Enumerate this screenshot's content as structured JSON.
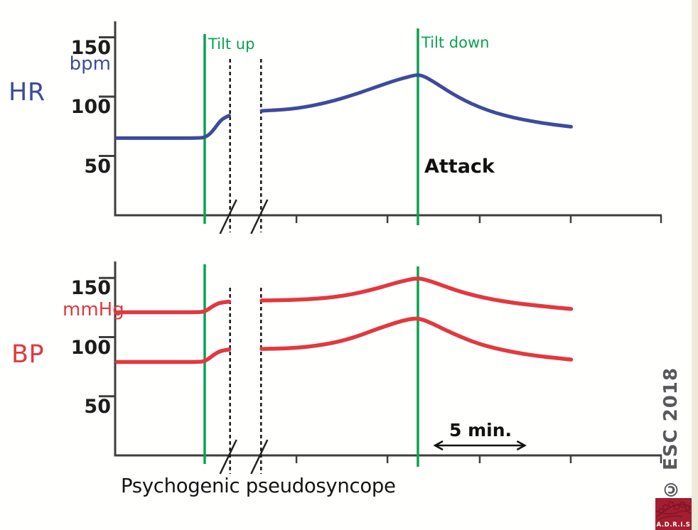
{
  "figure": {
    "caption": "Psychogenic pseudosyncope",
    "esc_credit": "© ESC 2018",
    "logo_text": "A.D.R.I.S"
  },
  "colors": {
    "hr_line": "#3e4a9c",
    "bp_line": "#e2383f",
    "event_line": "#0ba14f",
    "axis": "#3e3e3e",
    "dashed_line": "#161616",
    "text": "#141414",
    "esc_text": "#57585a",
    "logo_bg": "#a41e30",
    "logo_accent": "#7d1426",
    "side_strip": "#edead9"
  },
  "chart_data": [
    {
      "type": "line",
      "panel": "top",
      "panel_label": "HR",
      "ylabel": "bpm",
      "yticks": [
        150,
        100,
        50
      ],
      "ylim": [
        0,
        163
      ],
      "x_unit": "min",
      "grid": false,
      "xticks_min": [
        4.91,
        9.94,
        14.93,
        19.99,
        24.98,
        29.93
      ],
      "axis_break_min": [
        6.3,
        8.0
      ],
      "events": {
        "tilt_up_min": 4.91,
        "tilt_up_label": "Tilt up",
        "tilt_down_min": 16.6,
        "tilt_down_label": "Tilt down"
      },
      "annotation": "Attack",
      "series": [
        {
          "name": "heart-rate",
          "color": "#3e4a9c",
          "segments": [
            [
              [
                0.1,
                65
              ],
              [
                3.0,
                65
              ],
              [
                4.7,
                65
              ],
              [
                4.95,
                66
              ],
              [
                5.2,
                68.5
              ],
              [
                5.45,
                73
              ],
              [
                5.7,
                78.5
              ],
              [
                5.95,
                82
              ],
              [
                6.25,
                84
              ]
            ],
            [
              [
                8.03,
                88
              ],
              [
                8.8,
                88.6
              ],
              [
                9.6,
                89.6
              ],
              [
                10.4,
                91.2
              ],
              [
                11.2,
                93.6
              ],
              [
                12.0,
                96.6
              ],
              [
                12.8,
                100.2
              ],
              [
                13.6,
                104.3
              ],
              [
                14.4,
                108.6
              ],
              [
                15.2,
                112.8
              ],
              [
                15.9,
                116
              ],
              [
                16.35,
                117.8
              ],
              [
                16.62,
                118.4
              ],
              [
                16.95,
                117
              ],
              [
                17.35,
                113.6
              ],
              [
                17.85,
                108.7
              ],
              [
                18.45,
                102.8
              ],
              [
                19.15,
                96.8
              ],
              [
                19.95,
                91.2
              ],
              [
                20.85,
                86.2
              ],
              [
                21.85,
                82.2
              ],
              [
                22.85,
                79.2
              ],
              [
                23.9,
                76.6
              ],
              [
                25.0,
                74.6
              ]
            ]
          ]
        }
      ]
    },
    {
      "type": "line",
      "panel": "bottom",
      "panel_label": "BP",
      "ylabel": "mmHg",
      "yticks": [
        150,
        100,
        50
      ],
      "ylim": [
        0,
        164
      ],
      "x_unit": "min",
      "grid": false,
      "xticks_min": [
        4.91,
        9.94,
        14.93,
        19.99,
        24.98,
        29.93
      ],
      "axis_break_min": [
        6.3,
        8.0
      ],
      "events": {
        "tilt_up_min": 4.91,
        "tilt_down_min": 16.6
      },
      "scale_bar": {
        "label": "5 min.",
        "from_min": 17.5,
        "to_min": 22.5
      },
      "series": [
        {
          "name": "systolic-bp",
          "color": "#e2383f",
          "segments": [
            [
              [
                0.1,
                121
              ],
              [
                3.0,
                121
              ],
              [
                4.7,
                121
              ],
              [
                4.95,
                122
              ],
              [
                5.2,
                124.5
              ],
              [
                5.45,
                127
              ],
              [
                5.7,
                128.8
              ],
              [
                6.0,
                129.6
              ],
              [
                6.25,
                130
              ]
            ],
            [
              [
                8.03,
                131
              ],
              [
                9.0,
                131.2
              ],
              [
                10.0,
                131.6
              ],
              [
                11.0,
                132.4
              ],
              [
                12.0,
                133.8
              ],
              [
                13.0,
                136.2
              ],
              [
                13.9,
                139.4
              ],
              [
                14.8,
                143.2
              ],
              [
                15.6,
                146.8
              ],
              [
                16.2,
                148.9
              ],
              [
                16.6,
                149.7
              ],
              [
                17.0,
                148.6
              ],
              [
                17.5,
                146.2
              ],
              [
                18.1,
                142.8
              ],
              [
                18.8,
                139
              ],
              [
                19.7,
                135.2
              ],
              [
                20.7,
                131.8
              ],
              [
                21.8,
                129
              ],
              [
                22.9,
                127
              ],
              [
                24.0,
                125.2
              ],
              [
                25.0,
                123.8
              ]
            ]
          ]
        },
        {
          "name": "diastolic-bp",
          "color": "#e2383f",
          "segments": [
            [
              [
                0.1,
                79
              ],
              [
                3.0,
                79
              ],
              [
                4.7,
                79
              ],
              [
                4.95,
                80
              ],
              [
                5.2,
                82.5
              ],
              [
                5.45,
                85.5
              ],
              [
                5.7,
                87.8
              ],
              [
                6.0,
                89
              ],
              [
                6.25,
                89.5
              ]
            ],
            [
              [
                8.03,
                90
              ],
              [
                9.0,
                90.3
              ],
              [
                10.0,
                91
              ],
              [
                11.0,
                92.6
              ],
              [
                12.0,
                95.2
              ],
              [
                12.9,
                98.8
              ],
              [
                13.7,
                103
              ],
              [
                14.5,
                107.6
              ],
              [
                15.3,
                111.8
              ],
              [
                15.9,
                114.4
              ],
              [
                16.35,
                115.7
              ],
              [
                16.7,
                115.5
              ],
              [
                17.1,
                113.4
              ],
              [
                17.6,
                109.9
              ],
              [
                18.2,
                105.4
              ],
              [
                18.95,
                100.2
              ],
              [
                19.8,
                95
              ],
              [
                20.8,
                90.6
              ],
              [
                21.9,
                87
              ],
              [
                23.0,
                84.4
              ],
              [
                24.0,
                82.6
              ],
              [
                25.0,
                81
              ]
            ]
          ]
        }
      ]
    }
  ]
}
